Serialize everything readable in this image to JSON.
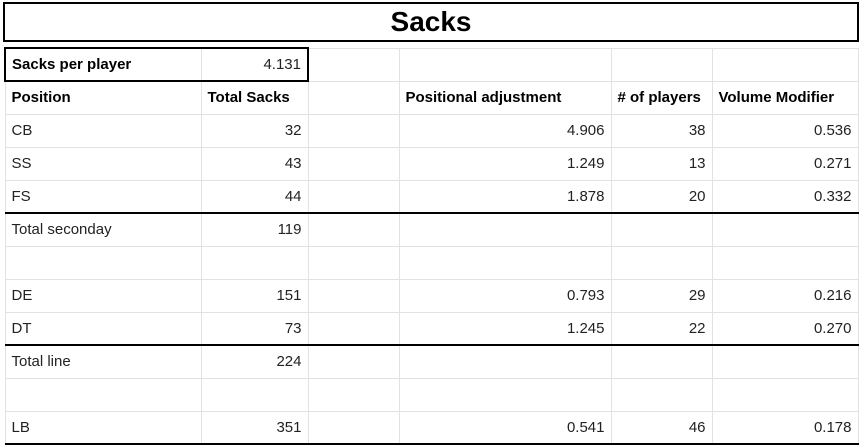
{
  "title": "Sacks",
  "summary": {
    "label": "Sacks per player",
    "value": "4.131"
  },
  "headers": {
    "position": "Position",
    "total_sacks": "Total Sacks",
    "blank": "",
    "positional_adjustment": "Positional adjustment",
    "num_players": "# of players",
    "volume_modifier": "Volume Modifier"
  },
  "rows": [
    {
      "position": "CB",
      "total": "32",
      "adj": "4.906",
      "players": "38",
      "vol": "0.536"
    },
    {
      "position": "SS",
      "total": "43",
      "adj": "1.249",
      "players": "13",
      "vol": "0.271"
    },
    {
      "position": "FS",
      "total": "44",
      "adj": "1.878",
      "players": "20",
      "vol": "0.332"
    },
    {
      "position": "Total seconday",
      "total": "119",
      "adj": "",
      "players": "",
      "vol": ""
    },
    {
      "position": "",
      "total": "",
      "adj": "",
      "players": "",
      "vol": ""
    },
    {
      "position": "DE",
      "total": "151",
      "adj": "0.793",
      "players": "29",
      "vol": "0.216"
    },
    {
      "position": "DT",
      "total": "73",
      "adj": "1.245",
      "players": "22",
      "vol": "0.270"
    },
    {
      "position": "Total line",
      "total": "224",
      "adj": "",
      "players": "",
      "vol": ""
    },
    {
      "position": "",
      "total": "",
      "adj": "",
      "players": "",
      "vol": ""
    },
    {
      "position": "LB",
      "total": "351",
      "adj": "0.541",
      "players": "46",
      "vol": "0.178"
    }
  ]
}
